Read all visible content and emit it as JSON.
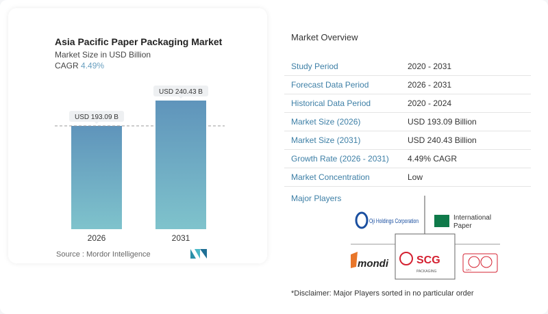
{
  "chart_data": {
    "type": "bar",
    "title": "Asia Pacific Paper Packaging Market",
    "subtitle": "Market Size in USD Billion",
    "cagr_label": "CAGR",
    "cagr_value": "4.49%",
    "categories": [
      "2026",
      "2031"
    ],
    "values": [
      193.09,
      240.43
    ],
    "data_labels": [
      "USD 193.09 B",
      "USD 240.43 B"
    ],
    "ylim": [
      0,
      250
    ],
    "grid": false,
    "bar_gradient": [
      "#5f94bb",
      "#7fc3cc"
    ],
    "source": "Source :  Mordor Intelligence"
  },
  "overview": {
    "title": "Market Overview",
    "rows": [
      {
        "k": "Study Period",
        "v": "2020 - 2031"
      },
      {
        "k": "Forecast Data Period",
        "v": "2026 - 2031"
      },
      {
        "k": "Historical Data Period",
        "v": "2020 - 2024"
      },
      {
        "k": "Market Size (2026)",
        "v": "USD 193.09 Billion"
      },
      {
        "k": "Market Size (2031)",
        "v": "USD 240.43 Billion"
      },
      {
        "k": "Growth Rate (2026 - 2031)",
        "v": "4.49% CAGR"
      },
      {
        "k": "Market Concentration",
        "v": "Low"
      }
    ],
    "major_players_label": "Major Players",
    "players": [
      "Oji Holdings Corporation",
      "International Paper",
      "mondi",
      "SCG Packaging",
      "SPC"
    ],
    "disclaimer": "*Disclaimer: Major Players sorted in no particular order"
  }
}
